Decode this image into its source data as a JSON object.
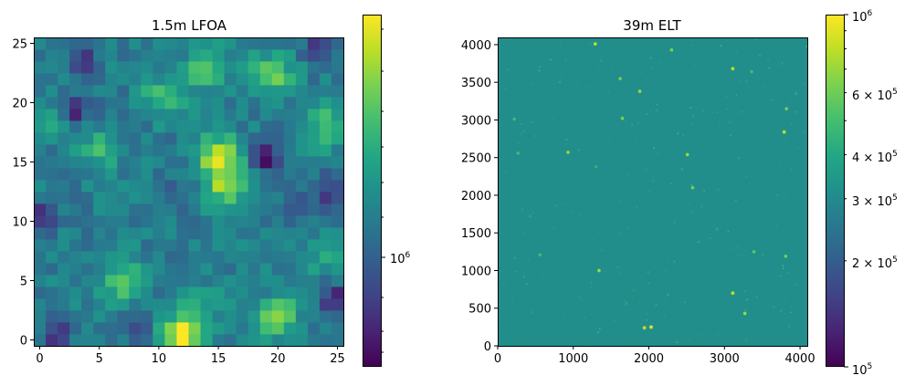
{
  "chart_data": [
    {
      "type": "heatmap",
      "title": "1.5m LFOA",
      "xlabel": "",
      "ylabel": "",
      "xlim": [
        -0.5,
        25.5
      ],
      "ylim": [
        -0.5,
        25.5
      ],
      "x_ticks": [
        0,
        5,
        10,
        15,
        20,
        25
      ],
      "y_ticks": [
        0,
        5,
        10,
        15,
        20,
        25
      ],
      "grid_shape": [
        26,
        26
      ],
      "origin": "lower",
      "colormap": "viridis",
      "colorbar": {
        "scale": "log",
        "label": "",
        "major_tick_labels": [
          {
            "base": "10",
            "exp": "6",
            "value": 1000000
          }
        ]
      },
      "value_scale": "relative 0-1 (0 = darkest purple, 1 = bright yellow); 0 rows listed bottom (y=0) to top (y=25)",
      "bright_regions": [
        {
          "x": 12,
          "y": 0.5,
          "level": 1.0
        },
        {
          "x": 15,
          "y": 15.5,
          "level": 0.85
        },
        {
          "x": 15.5,
          "y": 13,
          "level": 0.8
        },
        {
          "x": 10.5,
          "y": 20.5,
          "level": 0.7
        },
        {
          "x": 19.5,
          "y": 22.5,
          "level": 0.75
        },
        {
          "x": 7,
          "y": 5,
          "level": 0.75
        },
        {
          "x": 20,
          "y": 2,
          "level": 0.8
        },
        {
          "x": 24,
          "y": 18,
          "level": 0.7
        },
        {
          "x": 5,
          "y": 16,
          "level": 0.65
        },
        {
          "x": 13.5,
          "y": 3,
          "level": 0.55
        },
        {
          "x": 14,
          "y": 23,
          "level": 0.7
        },
        {
          "x": 1,
          "y": 18.5,
          "level": 0.55
        },
        {
          "x": 24,
          "y": 7,
          "level": 0.55
        },
        {
          "x": 2.5,
          "y": 6,
          "level": 0.45
        }
      ],
      "dark_regions": [
        {
          "x": 0,
          "y": 10.5,
          "level": 0.08
        },
        {
          "x": 3.5,
          "y": 23.5,
          "level": 0.12
        },
        {
          "x": 3,
          "y": 19.5,
          "level": 0.1
        },
        {
          "x": 19,
          "y": 15.5,
          "level": 0.05
        },
        {
          "x": 25,
          "y": 3.5,
          "level": 0.05
        },
        {
          "x": 1.5,
          "y": 0.5,
          "level": 0.1
        },
        {
          "x": 23.5,
          "y": 24.5,
          "level": 0.12
        },
        {
          "x": 8.5,
          "y": 0.5,
          "level": 0.2
        },
        {
          "x": 24,
          "y": 12.5,
          "level": 0.2
        },
        {
          "x": 11.5,
          "y": 12,
          "level": 0.25
        },
        {
          "x": 21,
          "y": 11,
          "level": 0.25
        }
      ]
    },
    {
      "type": "heatmap",
      "title": "39m ELT",
      "xlabel": "",
      "ylabel": "",
      "xlim": [
        0,
        4096
      ],
      "ylim": [
        0,
        4096
      ],
      "x_ticks": [
        0,
        1000,
        2000,
        3000,
        4000
      ],
      "y_ticks": [
        0,
        500,
        1000,
        1500,
        2000,
        2500,
        3000,
        3500,
        4000
      ],
      "colormap": "viridis",
      "background_value": 310000,
      "colorbar": {
        "scale": "log",
        "range": [
          100000,
          1000000
        ],
        "major_tick_labels": [
          {
            "value": 100000,
            "base": "10",
            "exp": "5"
          },
          {
            "value": 1000000,
            "base": "10",
            "exp": "6"
          }
        ],
        "labeled_minor_ticks": [
          {
            "value": 200000,
            "coef": "2",
            "sep": " × ",
            "base": "10",
            "exp": "5"
          },
          {
            "value": 300000,
            "coef": "3",
            "sep": " × ",
            "base": "10",
            "exp": "5"
          },
          {
            "value": 400000,
            "coef": "4",
            "sep": " × ",
            "base": "10",
            "exp": "5"
          },
          {
            "value": 600000,
            "coef": "6",
            "sep": " × ",
            "base": "10",
            "exp": "5"
          }
        ]
      },
      "bright_points": [
        {
          "x": 1290,
          "y": 4010,
          "v": 0.9
        },
        {
          "x": 2300,
          "y": 3930,
          "v": 0.8
        },
        {
          "x": 3110,
          "y": 3680,
          "v": 0.9
        },
        {
          "x": 1620,
          "y": 3550,
          "v": 0.8
        },
        {
          "x": 1880,
          "y": 3380,
          "v": 0.85
        },
        {
          "x": 3820,
          "y": 3150,
          "v": 0.8
        },
        {
          "x": 1650,
          "y": 3020,
          "v": 0.8
        },
        {
          "x": 3790,
          "y": 2840,
          "v": 0.9
        },
        {
          "x": 930,
          "y": 2570,
          "v": 0.85
        },
        {
          "x": 2510,
          "y": 2540,
          "v": 0.85
        },
        {
          "x": 2580,
          "y": 2100,
          "v": 0.8
        },
        {
          "x": 270,
          "y": 2560,
          "v": 0.7
        },
        {
          "x": 1340,
          "y": 1000,
          "v": 0.85
        },
        {
          "x": 3110,
          "y": 700,
          "v": 0.9
        },
        {
          "x": 3270,
          "y": 430,
          "v": 0.85
        },
        {
          "x": 2030,
          "y": 250,
          "v": 0.95
        },
        {
          "x": 1940,
          "y": 240,
          "v": 0.9
        },
        {
          "x": 3390,
          "y": 1250,
          "v": 0.75
        },
        {
          "x": 3810,
          "y": 1190,
          "v": 0.8
        },
        {
          "x": 560,
          "y": 1210,
          "v": 0.7
        },
        {
          "x": 220,
          "y": 3010,
          "v": 0.7
        },
        {
          "x": 3360,
          "y": 3640,
          "v": 0.7
        },
        {
          "x": 1300,
          "y": 2380,
          "v": 0.65
        },
        {
          "x": 2440,
          "y": 2350,
          "v": 0.6
        },
        {
          "x": 430,
          "y": 1720,
          "v": 0.6
        },
        {
          "x": 2900,
          "y": 1550,
          "v": 0.6
        },
        {
          "x": 3700,
          "y": 2000,
          "v": 0.55
        },
        {
          "x": 700,
          "y": 3800,
          "v": 0.6
        },
        {
          "x": 2250,
          "y": 680,
          "v": 0.6
        },
        {
          "x": 1700,
          "y": 560,
          "v": 0.6
        },
        {
          "x": 3650,
          "y": 520,
          "v": 0.55
        },
        {
          "x": 450,
          "y": 450,
          "v": 0.55
        },
        {
          "x": 3950,
          "y": 3350,
          "v": 0.6
        },
        {
          "x": 1050,
          "y": 1500,
          "v": 0.5
        },
        {
          "x": 2700,
          "y": 1850,
          "v": 0.55
        },
        {
          "x": 3950,
          "y": 1350,
          "v": 0.5
        }
      ]
    }
  ]
}
